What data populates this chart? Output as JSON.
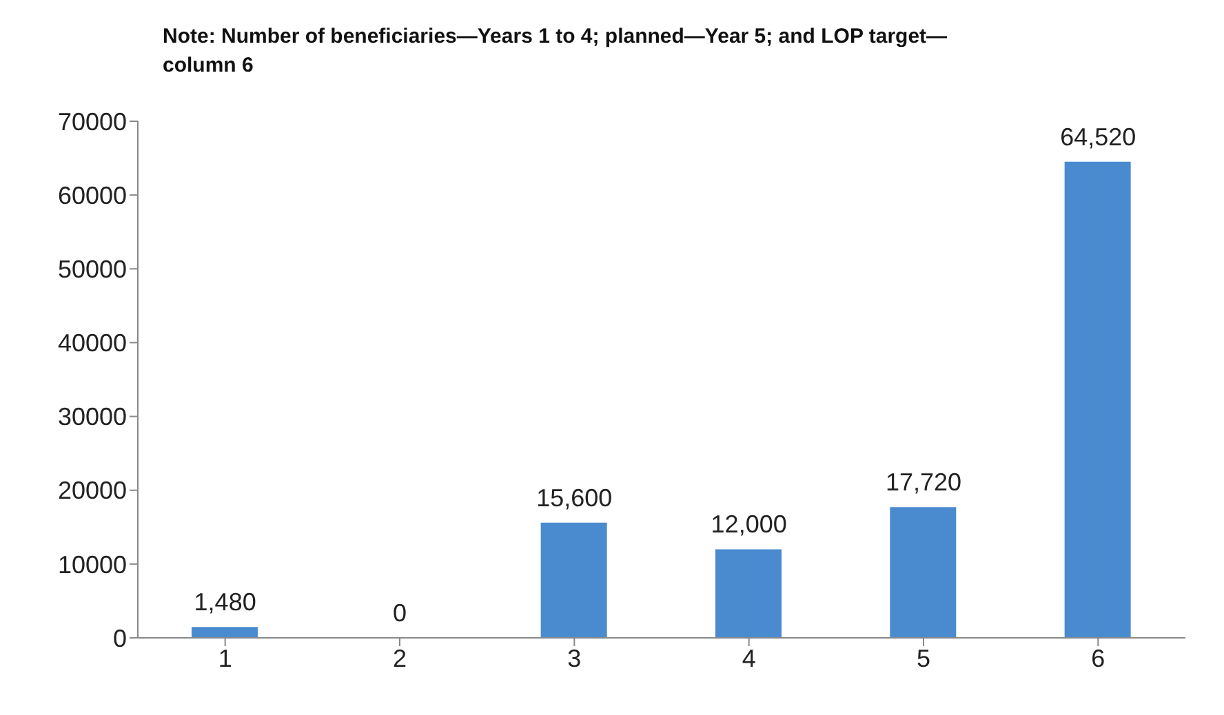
{
  "chart_data": {
    "type": "bar",
    "title": "Note: Number of beneficiaries—Years 1 to 4; planned—Year 5; and LOP target—column 6",
    "categories": [
      "1",
      "2",
      "3",
      "4",
      "5",
      "6"
    ],
    "values": [
      1480,
      0,
      15600,
      12000,
      17720,
      64520
    ],
    "value_labels": [
      "1,480",
      "0",
      "15,600",
      "12,000",
      "17,720",
      "64,520"
    ],
    "color": "#4a8bd0",
    "ylim": [
      0,
      70000
    ],
    "yticks": [
      0,
      10000,
      20000,
      30000,
      40000,
      50000,
      60000,
      70000
    ],
    "grid": false
  }
}
